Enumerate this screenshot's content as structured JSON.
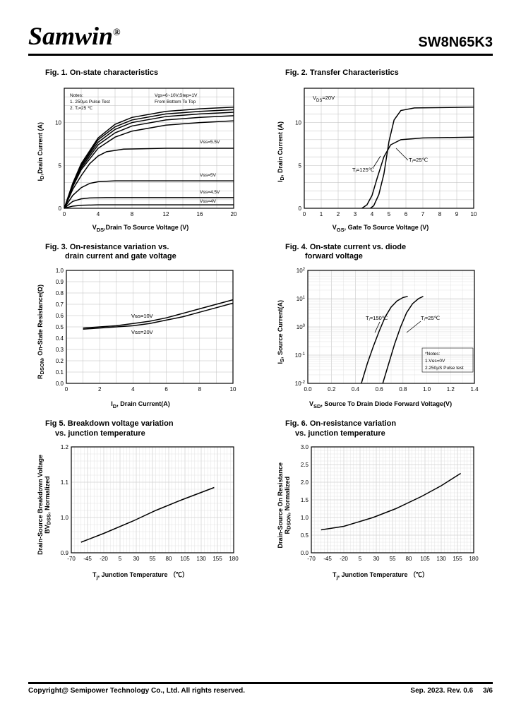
{
  "header": {
    "logo": "Samwin",
    "reg": "®",
    "part_number": "SW8N65K3"
  },
  "footer": {
    "copyright": "Copyright@ Semipower Technology Co., Ltd. All rights reserved.",
    "rev": "Sep. 2023. Rev. 0.6",
    "page": "3/6"
  },
  "colors": {
    "grid": "#bdbdbd",
    "grid_minor": "#dcdcdc",
    "curve": "#000000",
    "border": "#000000",
    "bg": "#ffffff"
  },
  "fig1": {
    "title": "Fig. 1. On-state characteristics",
    "xlabel": "Vₒₛ, Drain To Source Voltage (V)",
    "ylabel": "Iₒ, Drain Current (A)",
    "xlim": [
      0,
      20
    ],
    "ylim": [
      0,
      14
    ],
    "xtick_step": 4,
    "ytick_step": 5,
    "yticks": [
      0,
      5,
      10
    ],
    "notes": [
      "Notes:",
      "1. 250μs Pulse Test",
      "2. Tⱼ=25 ℃"
    ],
    "top_note": [
      "Vgs=6~10V,Step=1V",
      "From Bottom To Top"
    ],
    "curve_labels": [
      "Vɢs=5.5V",
      "Vɢs=5V",
      "Vɢs=4.5V",
      "Vɢs=4V"
    ],
    "curves": {
      "vgs10": [
        [
          0,
          0
        ],
        [
          1,
          2.9
        ],
        [
          2,
          5.2
        ],
        [
          4,
          8.2
        ],
        [
          6,
          9.8
        ],
        [
          8,
          10.6
        ],
        [
          12,
          11.3
        ],
        [
          16,
          11.6
        ],
        [
          20,
          11.8
        ]
      ],
      "vgs9": [
        [
          0,
          0
        ],
        [
          1,
          2.8
        ],
        [
          2,
          5.0
        ],
        [
          4,
          8.0
        ],
        [
          6,
          9.5
        ],
        [
          8,
          10.3
        ],
        [
          12,
          11.0
        ],
        [
          16,
          11.3
        ],
        [
          20,
          11.5
        ]
      ],
      "vgs8": [
        [
          0,
          0
        ],
        [
          1,
          2.7
        ],
        [
          2,
          4.9
        ],
        [
          4,
          7.7
        ],
        [
          6,
          9.2
        ],
        [
          8,
          10.0
        ],
        [
          12,
          10.7
        ],
        [
          16,
          11.0
        ],
        [
          20,
          11.2
        ]
      ],
      "vgs7": [
        [
          0,
          0
        ],
        [
          1,
          2.6
        ],
        [
          2,
          4.7
        ],
        [
          4,
          7.4
        ],
        [
          6,
          8.8
        ],
        [
          8,
          9.6
        ],
        [
          12,
          10.3
        ],
        [
          16,
          10.6
        ],
        [
          20,
          10.8
        ]
      ],
      "vgs6": [
        [
          0,
          0
        ],
        [
          1,
          2.5
        ],
        [
          2,
          4.5
        ],
        [
          4,
          7.0
        ],
        [
          6,
          8.3
        ],
        [
          8,
          9.0
        ],
        [
          12,
          9.7
        ],
        [
          16,
          10.0
        ],
        [
          20,
          10.2
        ]
      ],
      "vgs55": [
        [
          0,
          0
        ],
        [
          1,
          2.2
        ],
        [
          2,
          3.8
        ],
        [
          3,
          5.2
        ],
        [
          4,
          6.1
        ],
        [
          5,
          6.6
        ],
        [
          7,
          6.9
        ],
        [
          12,
          7.0
        ],
        [
          20,
          7.0
        ]
      ],
      "vgs5": [
        [
          0,
          0
        ],
        [
          1,
          1.5
        ],
        [
          2,
          2.4
        ],
        [
          3,
          2.9
        ],
        [
          4,
          3.1
        ],
        [
          6,
          3.2
        ],
        [
          20,
          3.2
        ]
      ],
      "vgs45": [
        [
          0,
          0
        ],
        [
          1,
          0.8
        ],
        [
          2,
          1.1
        ],
        [
          3,
          1.2
        ],
        [
          5,
          1.25
        ],
        [
          20,
          1.25
        ]
      ],
      "vgs4": [
        [
          0,
          0
        ],
        [
          1,
          0.25
        ],
        [
          2,
          0.35
        ],
        [
          4,
          0.4
        ],
        [
          20,
          0.4
        ]
      ]
    }
  },
  "fig2": {
    "title": "Fig. 2. Transfer Characteristics",
    "xlabel": "Vɢs, Gate To Source Voltage (V)",
    "ylabel": "Iₒ, Drain Current (A)",
    "xlim": [
      0,
      10
    ],
    "ylim": [
      0,
      14
    ],
    "xtick_step": 1,
    "ytick_step": 5,
    "yticks": [
      0,
      5,
      10
    ],
    "vds_label": "Vₒs=20V",
    "tj_labels": [
      "Tⱼ=125℃",
      "Tⱼ=25℃"
    ],
    "curves": {
      "tj25": [
        [
          3.9,
          0
        ],
        [
          4.1,
          0.3
        ],
        [
          4.4,
          1.6
        ],
        [
          4.7,
          4.0
        ],
        [
          5.0,
          7.8
        ],
        [
          5.3,
          10.3
        ],
        [
          5.7,
          11.4
        ],
        [
          6.5,
          11.7
        ],
        [
          10,
          11.8
        ]
      ],
      "tj125": [
        [
          3.4,
          0
        ],
        [
          3.7,
          0.4
        ],
        [
          4.0,
          1.5
        ],
        [
          4.3,
          3.5
        ],
        [
          4.7,
          6.0
        ],
        [
          5.1,
          7.4
        ],
        [
          5.7,
          8.0
        ],
        [
          7,
          8.2
        ],
        [
          10,
          8.3
        ]
      ]
    }
  },
  "fig3": {
    "title_l1": "Fig. 3. On-resistance variation vs.",
    "title_l2": "drain current and gate voltage",
    "xlabel": "Iₒ, Drain Current(A)",
    "ylabel": "Rₒₛₒₙ, On-State Resistance(Ω)",
    "xlim": [
      0,
      10
    ],
    "ylim": [
      0,
      1.0
    ],
    "xtick_step": 2,
    "ytick_step": 0.1,
    "labels": [
      "Vɢs=10V",
      "Vɢs=20V"
    ],
    "curves": {
      "vgs10": [
        [
          1,
          0.49
        ],
        [
          2,
          0.5
        ],
        [
          3,
          0.51
        ],
        [
          4,
          0.53
        ],
        [
          5,
          0.55
        ],
        [
          6,
          0.58
        ],
        [
          7,
          0.62
        ],
        [
          8,
          0.66
        ],
        [
          9,
          0.7
        ],
        [
          10,
          0.74
        ]
      ],
      "vgs20": [
        [
          1,
          0.48
        ],
        [
          2,
          0.49
        ],
        [
          3,
          0.5
        ],
        [
          4,
          0.51
        ],
        [
          5,
          0.53
        ],
        [
          6,
          0.56
        ],
        [
          7,
          0.59
        ],
        [
          8,
          0.63
        ],
        [
          9,
          0.67
        ],
        [
          10,
          0.71
        ]
      ]
    }
  },
  "fig4": {
    "title_l1": "Fig. 4. On-state current vs. diode",
    "title_l2": "forward voltage",
    "xlabel": "Vsₒ, Source To Drain Diode Forward Voltage(V)",
    "ylabel": "Is, Source Current(A)",
    "xlim": [
      0.0,
      1.4
    ],
    "xtick_step": 0.2,
    "ylog": [
      -2,
      2
    ],
    "notes": [
      "*Notes:",
      "1.Vɢs=0V",
      "2.250μS Pulse test"
    ],
    "labels": [
      "Tⱼ=150℃",
      "Tⱼ=25℃"
    ],
    "curves": {
      "tj150": [
        [
          0.45,
          -2
        ],
        [
          0.5,
          -1.3
        ],
        [
          0.55,
          -0.7
        ],
        [
          0.6,
          -0.15
        ],
        [
          0.65,
          0.35
        ],
        [
          0.7,
          0.7
        ],
        [
          0.75,
          0.92
        ],
        [
          0.8,
          1.04
        ],
        [
          0.84,
          1.08
        ]
      ],
      "tj25": [
        [
          0.63,
          -2
        ],
        [
          0.68,
          -1.3
        ],
        [
          0.73,
          -0.6
        ],
        [
          0.78,
          0.0
        ],
        [
          0.83,
          0.5
        ],
        [
          0.88,
          0.82
        ],
        [
          0.93,
          1.0
        ],
        [
          0.97,
          1.08
        ]
      ]
    }
  },
  "fig5": {
    "title_l1": "Fig 5. Breakdown voltage variation",
    "title_l2": "vs. junction temperature",
    "xlabel": "Tⱼ, Junction Temperature （℃）",
    "ylabel_l1": "BVₒss, Normalized",
    "ylabel_l2": "Drain-Source Breakdown Voltage",
    "xlim": [
      -70,
      180
    ],
    "ylim": [
      0.9,
      1.2
    ],
    "xtick_step": 25,
    "ytick_step": 0.1,
    "curve": [
      [
        -55,
        0.93
      ],
      [
        -20,
        0.955
      ],
      [
        25,
        0.99
      ],
      [
        60,
        1.02
      ],
      [
        100,
        1.05
      ],
      [
        150,
        1.085
      ]
    ]
  },
  "fig6": {
    "title_l1": "Fig. 6. On-resistance variation",
    "title_l2": "vs. junction temperature",
    "xlabel": "Tⱼ, Junction Temperature （℃）",
    "ylabel_l1": "Rₒsₒₙ, Normalized",
    "ylabel_l2": "Drain-Source On Resistance",
    "xlim": [
      -70,
      180
    ],
    "ylim": [
      0.0,
      3.0
    ],
    "xtick_step": 25,
    "ytick_step": 0.5,
    "curve": [
      [
        -55,
        0.65
      ],
      [
        -20,
        0.75
      ],
      [
        25,
        1.0
      ],
      [
        60,
        1.25
      ],
      [
        100,
        1.6
      ],
      [
        130,
        1.9
      ],
      [
        160,
        2.25
      ]
    ]
  }
}
